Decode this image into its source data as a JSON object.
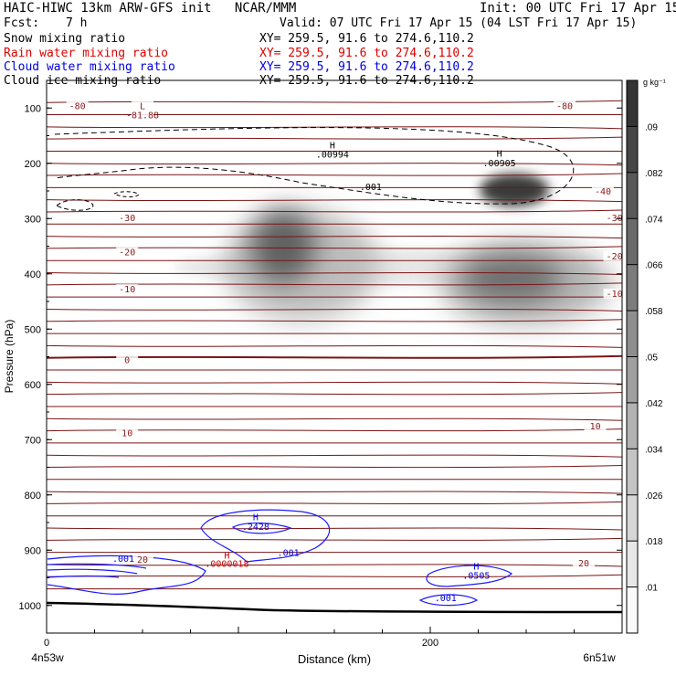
{
  "header": {
    "title_left": "HAIC-HIWC 13km ARW-GFS init   NCAR/MMM",
    "init": "Init: 00 UTC Fri 17 Apr 15",
    "fcst_label": "Fcst:",
    "fcst_value": "7 h",
    "valid": "Valid: 07 UTC Fri 17 Apr 15 (04 LST Fri 17 Apr 15)"
  },
  "legend": [
    {
      "name": "Snow mixing ratio",
      "xy": "XY= 259.5, 91.6 to 274.6,110.2",
      "color": "#000000"
    },
    {
      "name": "Rain water mixing ratio",
      "xy": "XY= 259.5, 91.6 to 274.6,110.2",
      "color": "#dd0000"
    },
    {
      "name": "Cloud water mixing ratio",
      "xy": "XY= 259.5, 91.6 to 274.6,110.2",
      "color": "#0000dd"
    },
    {
      "name": "Cloud ice mixing ratio",
      "xy": "XY= 259.5, 91.6 to 274.6,110.2",
      "color": "#000000"
    }
  ],
  "colorbar": {
    "unit": "g kg⁻¹",
    "labels": [
      ".01",
      ".018",
      ".026",
      ".034",
      ".042",
      ".05",
      ".058",
      ".066",
      ".074",
      ".082",
      ".09"
    ]
  },
  "chart_data": {
    "type": "heatmap",
    "title": "HAIC-HIWC 13km ARW-GFS init   NCAR/MMM",
    "xlabel": "Distance (km)",
    "ylabel": "Pressure (hPa)",
    "x_ticks": [
      "0",
      "200"
    ],
    "x_end_labels": [
      "4n53w",
      "6n51w"
    ],
    "y_ticks": [
      "100",
      "200",
      "300",
      "400",
      "500",
      "600",
      "700",
      "800",
      "900",
      "1000"
    ],
    "xlim": [
      0,
      300
    ],
    "ylim": [
      50,
      1050
    ],
    "y_inverted": true,
    "series": [
      {
        "name": "Snow mixing ratio",
        "render": "grey shading",
        "maxima": [
          {
            "x": 115,
            "p": 355,
            "value": 0.085
          },
          {
            "x": 240,
            "p": 395,
            "value": 0.082
          },
          {
            "x": 248,
            "p": 255,
            "value": 0.09
          }
        ]
      },
      {
        "name": "Rain water mixing ratio",
        "render": "red contour",
        "labels": [
          {
            "x": 94,
            "p": 915,
            "text": "H",
            "color": "#cc0000"
          },
          {
            "x": 94,
            "p": 930,
            "text": ".0000018",
            "color": "#cc0000"
          }
        ]
      },
      {
        "name": "Cloud water mixing ratio",
        "render": "blue contours",
        "contour_labels": [
          ".001",
          ".001",
          ".001"
        ],
        "maxima": [
          {
            "x": 112,
            "p": 860,
            "value": 0.2428
          },
          {
            "x": 226,
            "p": 945,
            "value": 0.0505
          }
        ]
      },
      {
        "name": "Cloud ice mixing ratio",
        "render": "dashed black contour",
        "contour_labels": [
          ".001"
        ],
        "maxima": [
          {
            "x": 149,
            "p": 190,
            "value": 0.00994
          },
          {
            "x": 236,
            "p": 205,
            "value": 0.00905
          }
        ]
      }
    ],
    "temperature_labels": [
      {
        "x": 16,
        "p": 100,
        "text": "-80"
      },
      {
        "x": 270,
        "p": 100,
        "text": "-80"
      },
      {
        "x": 50,
        "p": 117,
        "text": "-81.88"
      },
      {
        "x": 50,
        "p": 100,
        "text": "L"
      },
      {
        "x": 290,
        "p": 255,
        "text": "-40"
      },
      {
        "x": 42,
        "p": 303,
        "text": "-30"
      },
      {
        "x": 296,
        "p": 303,
        "text": "-30"
      },
      {
        "x": 42,
        "p": 365,
        "text": "-20"
      },
      {
        "x": 296,
        "p": 372,
        "text": "-20"
      },
      {
        "x": 42,
        "p": 432,
        "text": "-10"
      },
      {
        "x": 296,
        "p": 440,
        "text": "-10"
      },
      {
        "x": 42,
        "p": 560,
        "text": "0"
      },
      {
        "x": 42,
        "p": 692,
        "text": "10"
      },
      {
        "x": 286,
        "p": 680,
        "text": "10"
      },
      {
        "x": 50,
        "p": 921,
        "text": "20"
      },
      {
        "x": 280,
        "p": 928,
        "text": "20"
      }
    ],
    "blue_labels": [
      {
        "x": 109,
        "p": 846,
        "text": "H"
      },
      {
        "x": 109,
        "p": 863,
        "text": ".2428"
      },
      {
        "x": 126,
        "p": 910,
        "text": ".001"
      },
      {
        "x": 40,
        "p": 921,
        "text": ".001"
      },
      {
        "x": 224,
        "p": 935,
        "text": "H"
      },
      {
        "x": 224,
        "p": 952,
        "text": ".0505"
      },
      {
        "x": 208,
        "p": 992,
        "text": ".001"
      }
    ],
    "ice_labels": [
      {
        "x": 149,
        "p": 173,
        "text": "H"
      },
      {
        "x": 149,
        "p": 190,
        "text": ".00994"
      },
      {
        "x": 236,
        "p": 188,
        "text": "H"
      },
      {
        "x": 236,
        "p": 205,
        "text": ".00905"
      },
      {
        "x": 169,
        "p": 248,
        "text": ".001"
      }
    ]
  }
}
